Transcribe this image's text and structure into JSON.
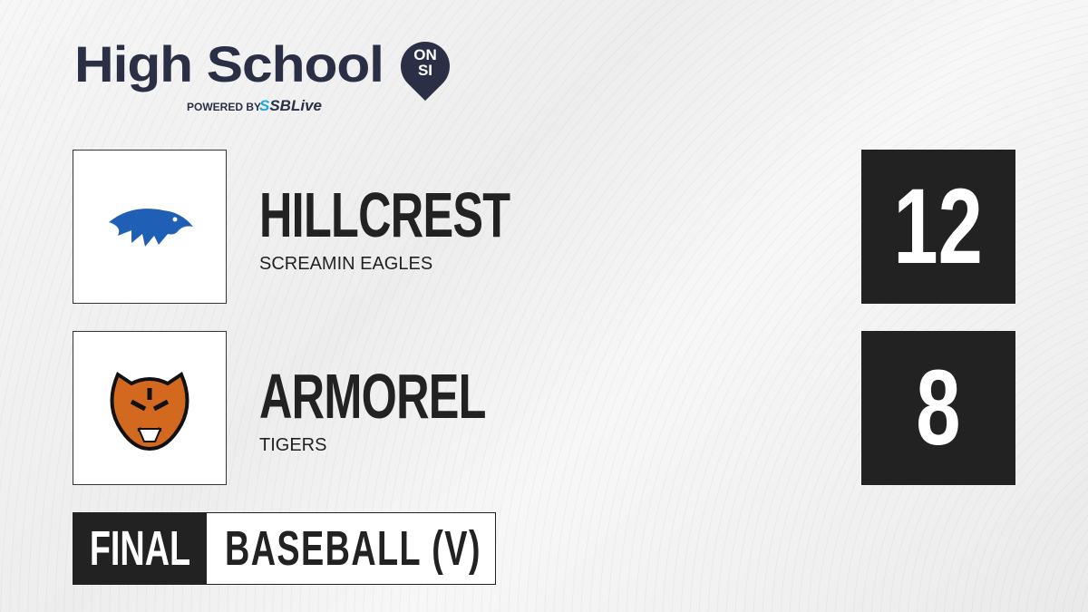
{
  "brand": {
    "title": "High School",
    "badge_top": "ON",
    "badge_bottom": "SI",
    "powered_by": "POWERED BY",
    "partner_prefix": "S",
    "partner_name": "SBLive",
    "color": "#2b2f45",
    "partner_color": "#1ea7e0"
  },
  "teams": [
    {
      "name": "HILLCREST",
      "mascot": "SCREAMIN EAGLES",
      "score": "12",
      "logo": "eagle-logo",
      "logo_color": "#1f5fb5"
    },
    {
      "name": "ARMOREL",
      "mascot": "TIGERS",
      "score": "8",
      "logo": "tiger-logo",
      "logo_color": "#d2691e"
    }
  ],
  "status": {
    "label": "FINAL",
    "sport": "BASEBALL (V)"
  }
}
